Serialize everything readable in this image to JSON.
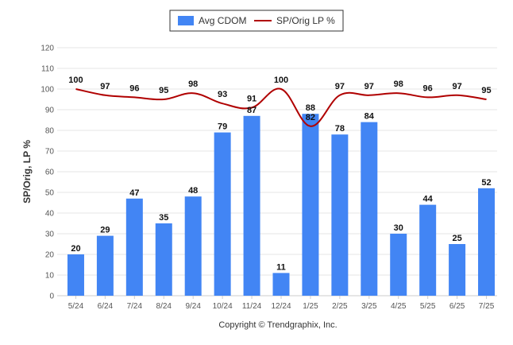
{
  "chart_data": {
    "type": "bar",
    "categories": [
      "5/24",
      "6/24",
      "7/24",
      "8/24",
      "9/24",
      "10/24",
      "11/24",
      "12/24",
      "1/25",
      "2/25",
      "3/25",
      "4/25",
      "5/25",
      "6/25",
      "7/25"
    ],
    "series": [
      {
        "name": "Avg CDOM",
        "kind": "bar",
        "color": "#4285f4",
        "values": [
          20,
          29,
          47,
          35,
          48,
          79,
          87,
          11,
          88,
          78,
          84,
          30,
          44,
          25,
          52
        ]
      },
      {
        "name": "SP/Orig LP %",
        "kind": "line",
        "color": "#b00000",
        "values": [
          100,
          97,
          96,
          95,
          98,
          93,
          91,
          100,
          82,
          97,
          97,
          98,
          96,
          97,
          95
        ]
      }
    ],
    "ylabel": "SP/Orig, LP %",
    "ylim": [
      0,
      120
    ],
    "yticks": [
      0,
      10,
      20,
      30,
      40,
      50,
      60,
      70,
      80,
      90,
      100,
      110,
      120
    ],
    "grid": true,
    "legend_position": "top-center"
  },
  "footer": {
    "copyright": "Copyright © Trendgraphix, Inc."
  }
}
